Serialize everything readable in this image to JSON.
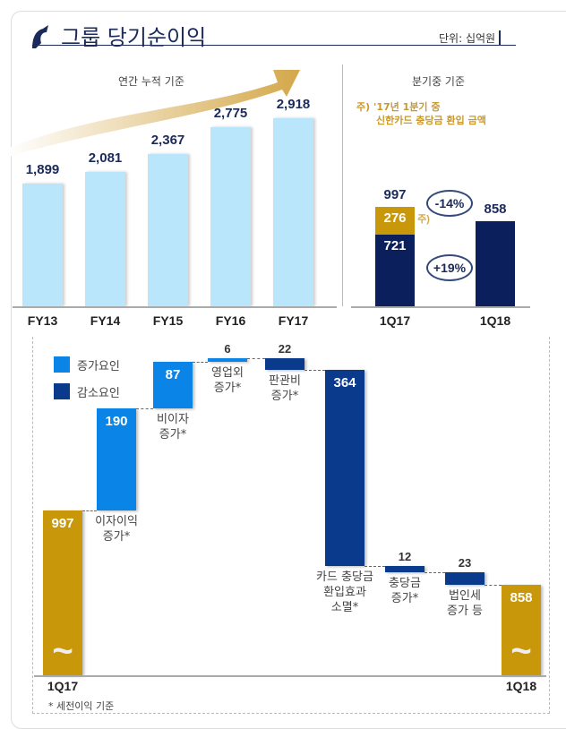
{
  "header": {
    "title": "그룹 당기순이익",
    "unit": "단위: 십억원"
  },
  "colors": {
    "annual_bar": "#b9e6fb",
    "navy": "#0b1f5c",
    "gold": "#c9980a",
    "increase": "#0a84e6",
    "decrease": "#0a3a8c",
    "arrow": "#d4a84a"
  },
  "chart_data": [
    {
      "type": "bar",
      "title": "연간 누적 기준",
      "categories": [
        "FY13",
        "FY14",
        "FY15",
        "FY16",
        "FY17"
      ],
      "values": [
        1899,
        2081,
        2367,
        2775,
        2918
      ],
      "labels": [
        "1,899",
        "2,081",
        "2,367",
        "2,775",
        "2,918"
      ]
    },
    {
      "type": "bar",
      "title": "분기중 기준",
      "note": [
        "주) '17년 1분기 중",
        "신한카드 충당금 환입 금액"
      ],
      "note_marker": "주)",
      "categories": [
        "1Q17",
        "1Q18"
      ],
      "stacks": [
        {
          "total": 997,
          "parts": [
            721,
            276
          ]
        },
        {
          "total": 858,
          "parts": [
            858
          ]
        }
      ],
      "changes": [
        "-14%",
        "+19%"
      ]
    },
    {
      "type": "bar",
      "subtype": "waterfall",
      "legend": [
        "증가요인",
        "감소요인"
      ],
      "steps": [
        {
          "label": "1Q17",
          "value": 997,
          "kind": "total"
        },
        {
          "label": "이자이익\n증가*",
          "value": 190,
          "kind": "increase"
        },
        {
          "label": "비이자\n증가*",
          "value": 87,
          "kind": "increase"
        },
        {
          "label": "영업외\n증가*",
          "value": 6,
          "kind": "increase"
        },
        {
          "label": "판관비\n증가*",
          "value": 22,
          "kind": "decrease"
        },
        {
          "label": "카드 충당금\n환입효과\n소멸*",
          "value": 364,
          "kind": "decrease"
        },
        {
          "label": "충당금\n증가*",
          "value": 12,
          "kind": "decrease"
        },
        {
          "label": "법인세\n증가 등",
          "value": 23,
          "kind": "decrease"
        },
        {
          "label": "1Q18",
          "value": 858,
          "kind": "total"
        }
      ],
      "footnote": "* 세전이익 기준"
    }
  ]
}
